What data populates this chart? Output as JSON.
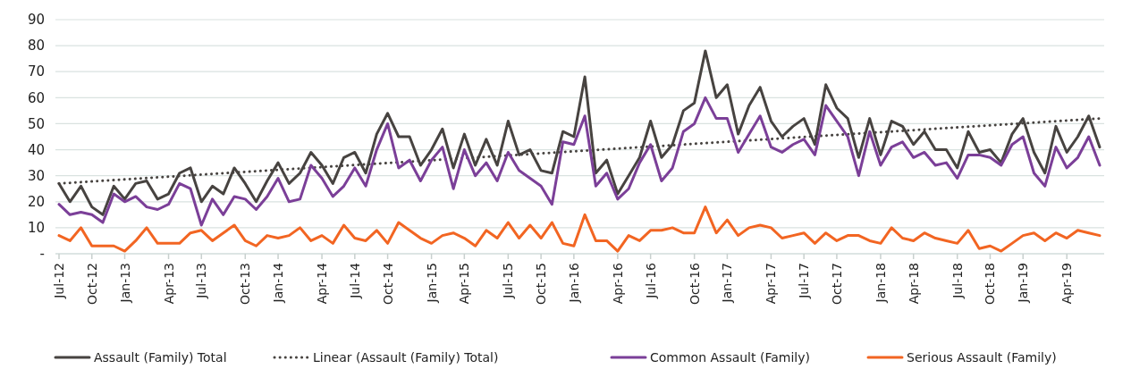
{
  "chart_data": {
    "type": "line",
    "categories": [
      "Jul-12",
      null,
      null,
      "Oct-12",
      null,
      null,
      "Jan-13",
      null,
      null,
      null,
      "Apr-13",
      null,
      null,
      "Jul-13",
      null,
      null,
      null,
      "Oct-13",
      null,
      null,
      "Jan-14",
      null,
      null,
      null,
      "Apr-14",
      null,
      null,
      "Jul-14",
      null,
      null,
      "Oct-14",
      null,
      null,
      null,
      "Jan-15",
      null,
      null,
      "Apr-15",
      null,
      null,
      null,
      "Jul-15",
      null,
      null,
      "Oct-15",
      null,
      null,
      "Jan-16",
      null,
      null,
      null,
      "Apr-16",
      null,
      null,
      "Jul-16",
      null,
      null,
      null,
      "Oct-16",
      null,
      null,
      "Jan-17",
      null,
      null,
      null,
      "Apr-17",
      null,
      null,
      "Jul-17",
      null,
      null,
      "Oct-17",
      null,
      null,
      null,
      "Jan-18",
      null,
      null,
      "Apr-18",
      null,
      null,
      null,
      "Jul-18",
      null,
      null,
      "Oct-18",
      null,
      null,
      "Jan-19",
      null,
      null,
      null,
      "Apr-19",
      null,
      null,
      null
    ],
    "series": [
      {
        "name": "Assault (Family) Total",
        "color": "#474340",
        "line_style": "solid",
        "values": [
          27,
          20,
          26,
          18,
          15,
          26,
          21,
          27,
          28,
          21,
          23,
          31,
          33,
          20,
          26,
          23,
          33,
          27,
          20,
          28,
          35,
          27,
          31,
          39,
          34,
          27,
          37,
          39,
          31,
          46,
          54,
          45,
          45,
          34,
          40,
          48,
          33,
          46,
          34,
          44,
          34,
          51,
          38,
          40,
          32,
          31,
          47,
          45,
          68,
          31,
          36,
          23,
          30,
          37,
          51,
          37,
          42,
          55,
          58,
          78,
          60,
          65,
          46,
          57,
          64,
          51,
          45,
          49,
          52,
          42,
          65,
          56,
          52,
          37,
          52,
          38,
          51,
          49,
          42,
          47,
          40,
          40,
          33,
          47,
          39,
          40,
          35,
          46,
          52,
          39,
          31,
          49,
          39,
          45,
          53,
          41
        ]
      },
      {
        "name": "Linear (Assault (Family) Total)",
        "color": "#474340",
        "line_style": "dotted",
        "values": [
          27,
          null,
          null,
          null,
          null,
          null,
          null,
          null,
          null,
          null,
          null,
          null,
          null,
          null,
          null,
          null,
          null,
          null,
          null,
          null,
          null,
          null,
          null,
          null,
          null,
          null,
          null,
          null,
          null,
          null,
          null,
          null,
          null,
          null,
          null,
          null,
          null,
          null,
          null,
          null,
          null,
          null,
          null,
          null,
          null,
          null,
          null,
          null,
          null,
          null,
          null,
          null,
          null,
          null,
          null,
          null,
          null,
          null,
          null,
          null,
          null,
          null,
          null,
          null,
          null,
          null,
          null,
          null,
          null,
          null,
          null,
          null,
          null,
          null,
          null,
          null,
          null,
          null,
          null,
          null,
          null,
          null,
          null,
          null,
          null,
          null,
          null,
          null,
          null,
          null,
          null,
          null,
          null,
          null,
          null,
          52
        ]
      },
      {
        "name": "Common Assault (Family)",
        "color": "#7b3f98",
        "line_style": "solid",
        "values": [
          19,
          15,
          16,
          15,
          12,
          23,
          20,
          22,
          18,
          17,
          19,
          27,
          25,
          11,
          21,
          15,
          22,
          21,
          17,
          22,
          29,
          20,
          21,
          34,
          29,
          22,
          26,
          33,
          26,
          40,
          50,
          33,
          36,
          28,
          36,
          41,
          25,
          40,
          30,
          35,
          28,
          39,
          32,
          29,
          26,
          19,
          43,
          42,
          53,
          26,
          31,
          21,
          25,
          35,
          42,
          28,
          33,
          47,
          50,
          60,
          52,
          52,
          39,
          46,
          53,
          41,
          39,
          42,
          44,
          38,
          57,
          51,
          45,
          30,
          47,
          34,
          41,
          43,
          37,
          39,
          34,
          35,
          29,
          38,
          38,
          37,
          34,
          42,
          45,
          31,
          26,
          41,
          33,
          37,
          45,
          34
        ]
      },
      {
        "name": "Serious Assault (Family)",
        "color": "#f26522",
        "line_style": "solid",
        "values": [
          7,
          5,
          10,
          3,
          3,
          3,
          1,
          5,
          10,
          4,
          4,
          4,
          8,
          9,
          5,
          8,
          11,
          5,
          3,
          7,
          6,
          7,
          10,
          5,
          7,
          4,
          11,
          6,
          5,
          9,
          4,
          12,
          9,
          6,
          4,
          7,
          8,
          6,
          3,
          9,
          6,
          12,
          6,
          11,
          6,
          12,
          4,
          3,
          15,
          5,
          5,
          1,
          7,
          5,
          9,
          9,
          10,
          8,
          8,
          18,
          8,
          13,
          7,
          10,
          11,
          10,
          6,
          7,
          8,
          4,
          8,
          5,
          7,
          7,
          5,
          4,
          10,
          6,
          5,
          8,
          6,
          5,
          4,
          9,
          2,
          3,
          1,
          4,
          7,
          8,
          5,
          8,
          6,
          9,
          8,
          7
        ]
      }
    ],
    "ylim": [
      0,
      90
    ],
    "yticks": [
      {
        "value": 0,
        "label": "-"
      },
      10,
      20,
      30,
      40,
      50,
      60,
      70,
      80,
      90
    ],
    "grid": "y",
    "legend": "bottom"
  }
}
